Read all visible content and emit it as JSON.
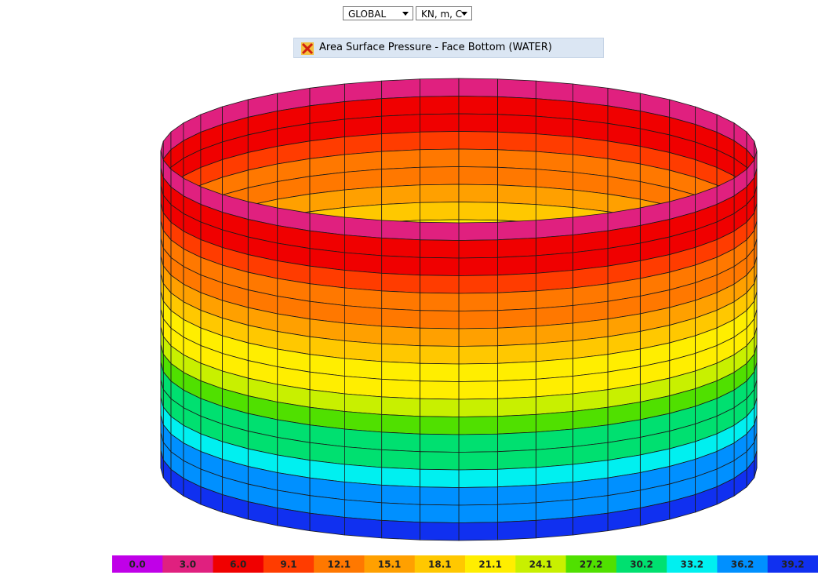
{
  "toolbar": {
    "coordinate_system": "GLOBAL",
    "units": "KN, m, C"
  },
  "header": {
    "title": "Area Surface Pressure - Face Bottom (WATER)"
  },
  "legend": {
    "labels": [
      "0.0",
      "3.0",
      "6.0",
      "9.1",
      "12.1",
      "15.1",
      "18.1",
      "21.1",
      "24.1",
      "27.2",
      "30.2",
      "33.2",
      "36.2",
      "39.2"
    ],
    "colors": [
      "#c000e8",
      "#e0207f",
      "#f00000",
      "#ff3c00",
      "#ff7800",
      "#ffa000",
      "#ffc800",
      "#ffee00",
      "#c8f000",
      "#50e000",
      "#00e070",
      "#00f0f0",
      "#0090ff",
      "#1030f0"
    ]
  }
}
